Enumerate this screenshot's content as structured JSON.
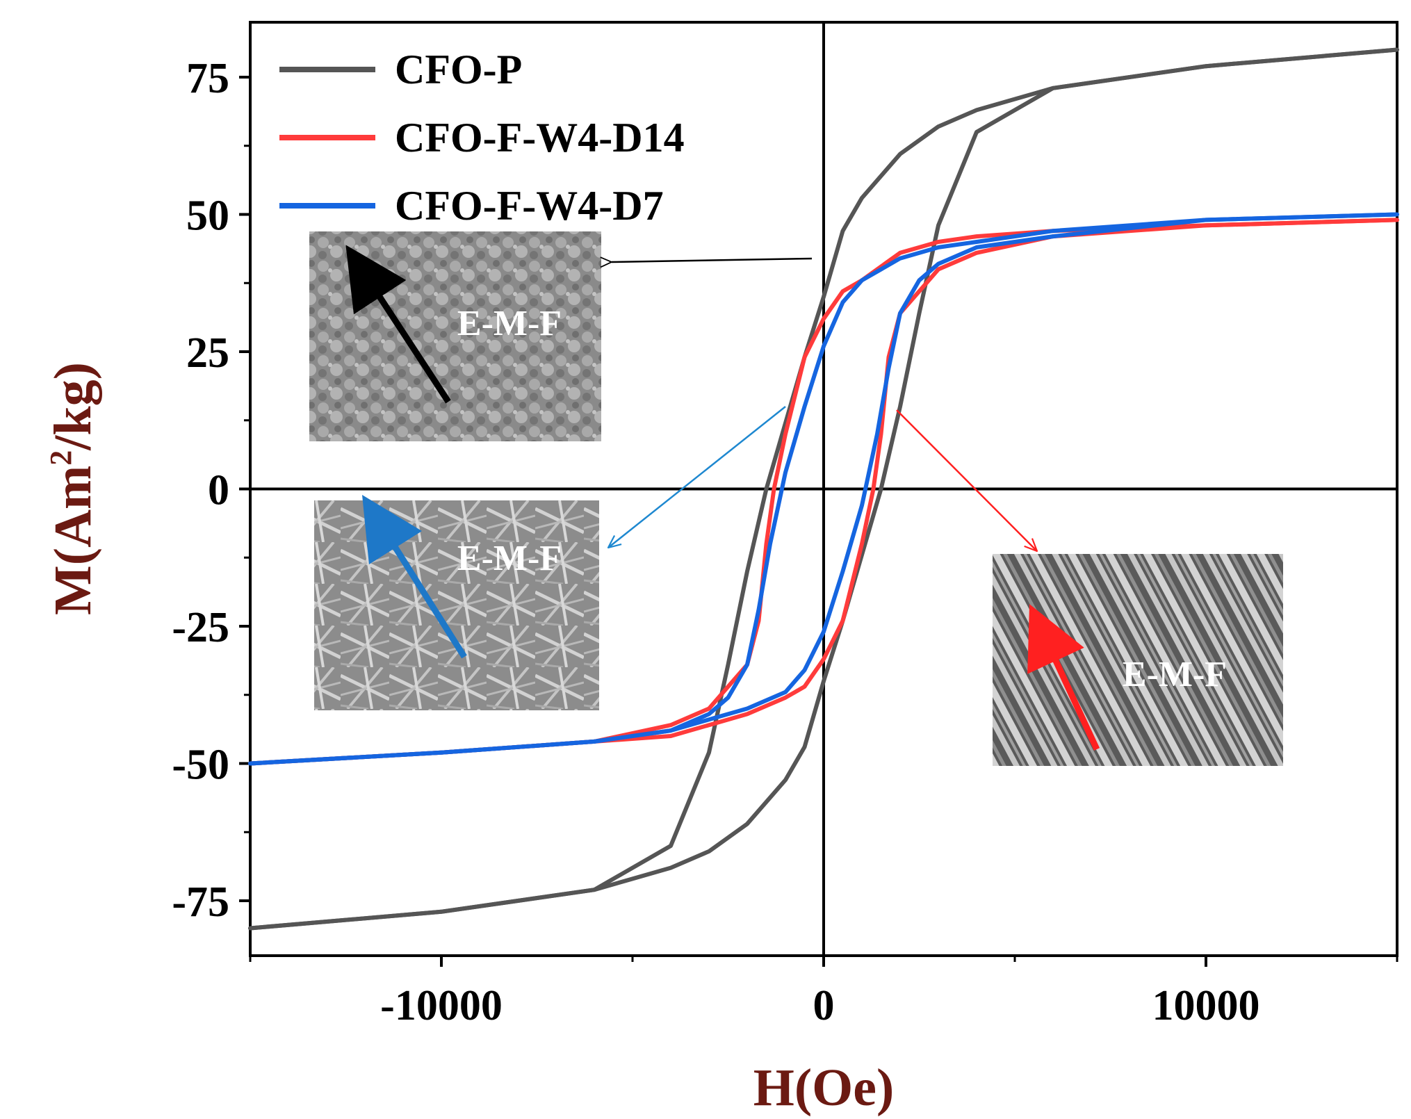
{
  "chart_data": {
    "type": "line",
    "title": "",
    "xlabel": "H(Oe)",
    "ylabel_prefix": "M(Am",
    "ylabel_sup": "2",
    "ylabel_suffix": "/kg)",
    "xlim": [
      -15000,
      15000
    ],
    "ylim": [
      -85,
      85
    ],
    "x_ticks": [
      -10000,
      0,
      10000
    ],
    "x_tick_labels": [
      "-10000",
      "0",
      "10000"
    ],
    "y_ticks": [
      75,
      50,
      25,
      0,
      -25,
      -50,
      -75
    ],
    "y_tick_labels": [
      "75",
      "50",
      "25",
      "0",
      "-25",
      "-50",
      "-75"
    ],
    "series": [
      {
        "name": "CFO-P",
        "color": "#555555",
        "descending": {
          "H": [
            15000,
            10000,
            6000,
            4000,
            3000,
            2000,
            1000,
            500,
            0,
            -500,
            -1000,
            -1500,
            -2000,
            -2500,
            -3000,
            -4000,
            -6000,
            -10000,
            -15000
          ],
          "M": [
            80,
            77,
            73,
            69,
            66,
            61,
            53,
            47,
            35,
            24,
            12,
            0,
            -15,
            -32,
            -48,
            -65,
            -73,
            -77,
            -80
          ]
        },
        "ascending": {
          "H": [
            -15000,
            -10000,
            -6000,
            -4000,
            -3000,
            -2000,
            -1000,
            -500,
            0,
            500,
            1000,
            1500,
            2000,
            2500,
            3000,
            4000,
            6000,
            10000,
            15000
          ],
          "M": [
            -80,
            -77,
            -73,
            -69,
            -66,
            -61,
            -53,
            -47,
            -35,
            -24,
            -12,
            0,
            15,
            32,
            48,
            65,
            73,
            77,
            80
          ]
        }
      },
      {
        "name": "CFO-F-W4-D14",
        "color": "#ff3b3b",
        "descending": {
          "H": [
            15000,
            10000,
            6000,
            4000,
            3000,
            2000,
            1000,
            500,
            0,
            -500,
            -1000,
            -1300,
            -1500,
            -1700,
            -2000,
            -3000,
            -4000,
            -6000,
            -10000,
            -15000
          ],
          "M": [
            49,
            48,
            47,
            46,
            45,
            43,
            38,
            36,
            31,
            24,
            10,
            0,
            -10,
            -24,
            -32,
            -40,
            -43,
            -46,
            -48,
            -50
          ]
        },
        "ascending": {
          "H": [
            -15000,
            -10000,
            -6000,
            -4000,
            -3000,
            -2000,
            -1000,
            -500,
            0,
            500,
            1000,
            1300,
            1500,
            1700,
            2000,
            3000,
            4000,
            6000,
            10000,
            15000
          ],
          "M": [
            -50,
            -48,
            -46,
            -45,
            -43,
            -41,
            -38,
            -36,
            -31,
            -24,
            -10,
            0,
            10,
            24,
            32,
            40,
            43,
            46,
            48,
            49
          ]
        }
      },
      {
        "name": "CFO-F-W4-D7",
        "color": "#1565e0",
        "descending": {
          "H": [
            15000,
            10000,
            6000,
            4000,
            3000,
            2000,
            1000,
            500,
            0,
            -500,
            -1000,
            -1400,
            -1700,
            -2000,
            -2500,
            -3000,
            -4000,
            -6000,
            -10000,
            -15000
          ],
          "M": [
            50,
            49,
            47,
            45,
            44,
            42,
            38,
            34,
            26,
            15,
            3,
            -10,
            -22,
            -32,
            -38,
            -41,
            -44,
            -46,
            -48,
            -50
          ]
        },
        "ascending": {
          "H": [
            -15000,
            -10000,
            -6000,
            -4000,
            -3000,
            -2000,
            -1000,
            -500,
            0,
            500,
            1000,
            1400,
            1700,
            2000,
            2500,
            3000,
            4000,
            6000,
            10000,
            15000
          ],
          "M": [
            -50,
            -48,
            -46,
            -44,
            -42,
            -40,
            -37,
            -33,
            -26,
            -15,
            -3,
            10,
            22,
            32,
            38,
            41,
            44,
            46,
            49,
            50
          ]
        }
      }
    ],
    "legend_position": "top-left",
    "insets": [
      {
        "label": "E-M-F",
        "color": "#000000"
      },
      {
        "label": "E-M-F",
        "color": "#1e78c8"
      },
      {
        "label": "E-M-F",
        "color": "#ff2020"
      }
    ]
  }
}
